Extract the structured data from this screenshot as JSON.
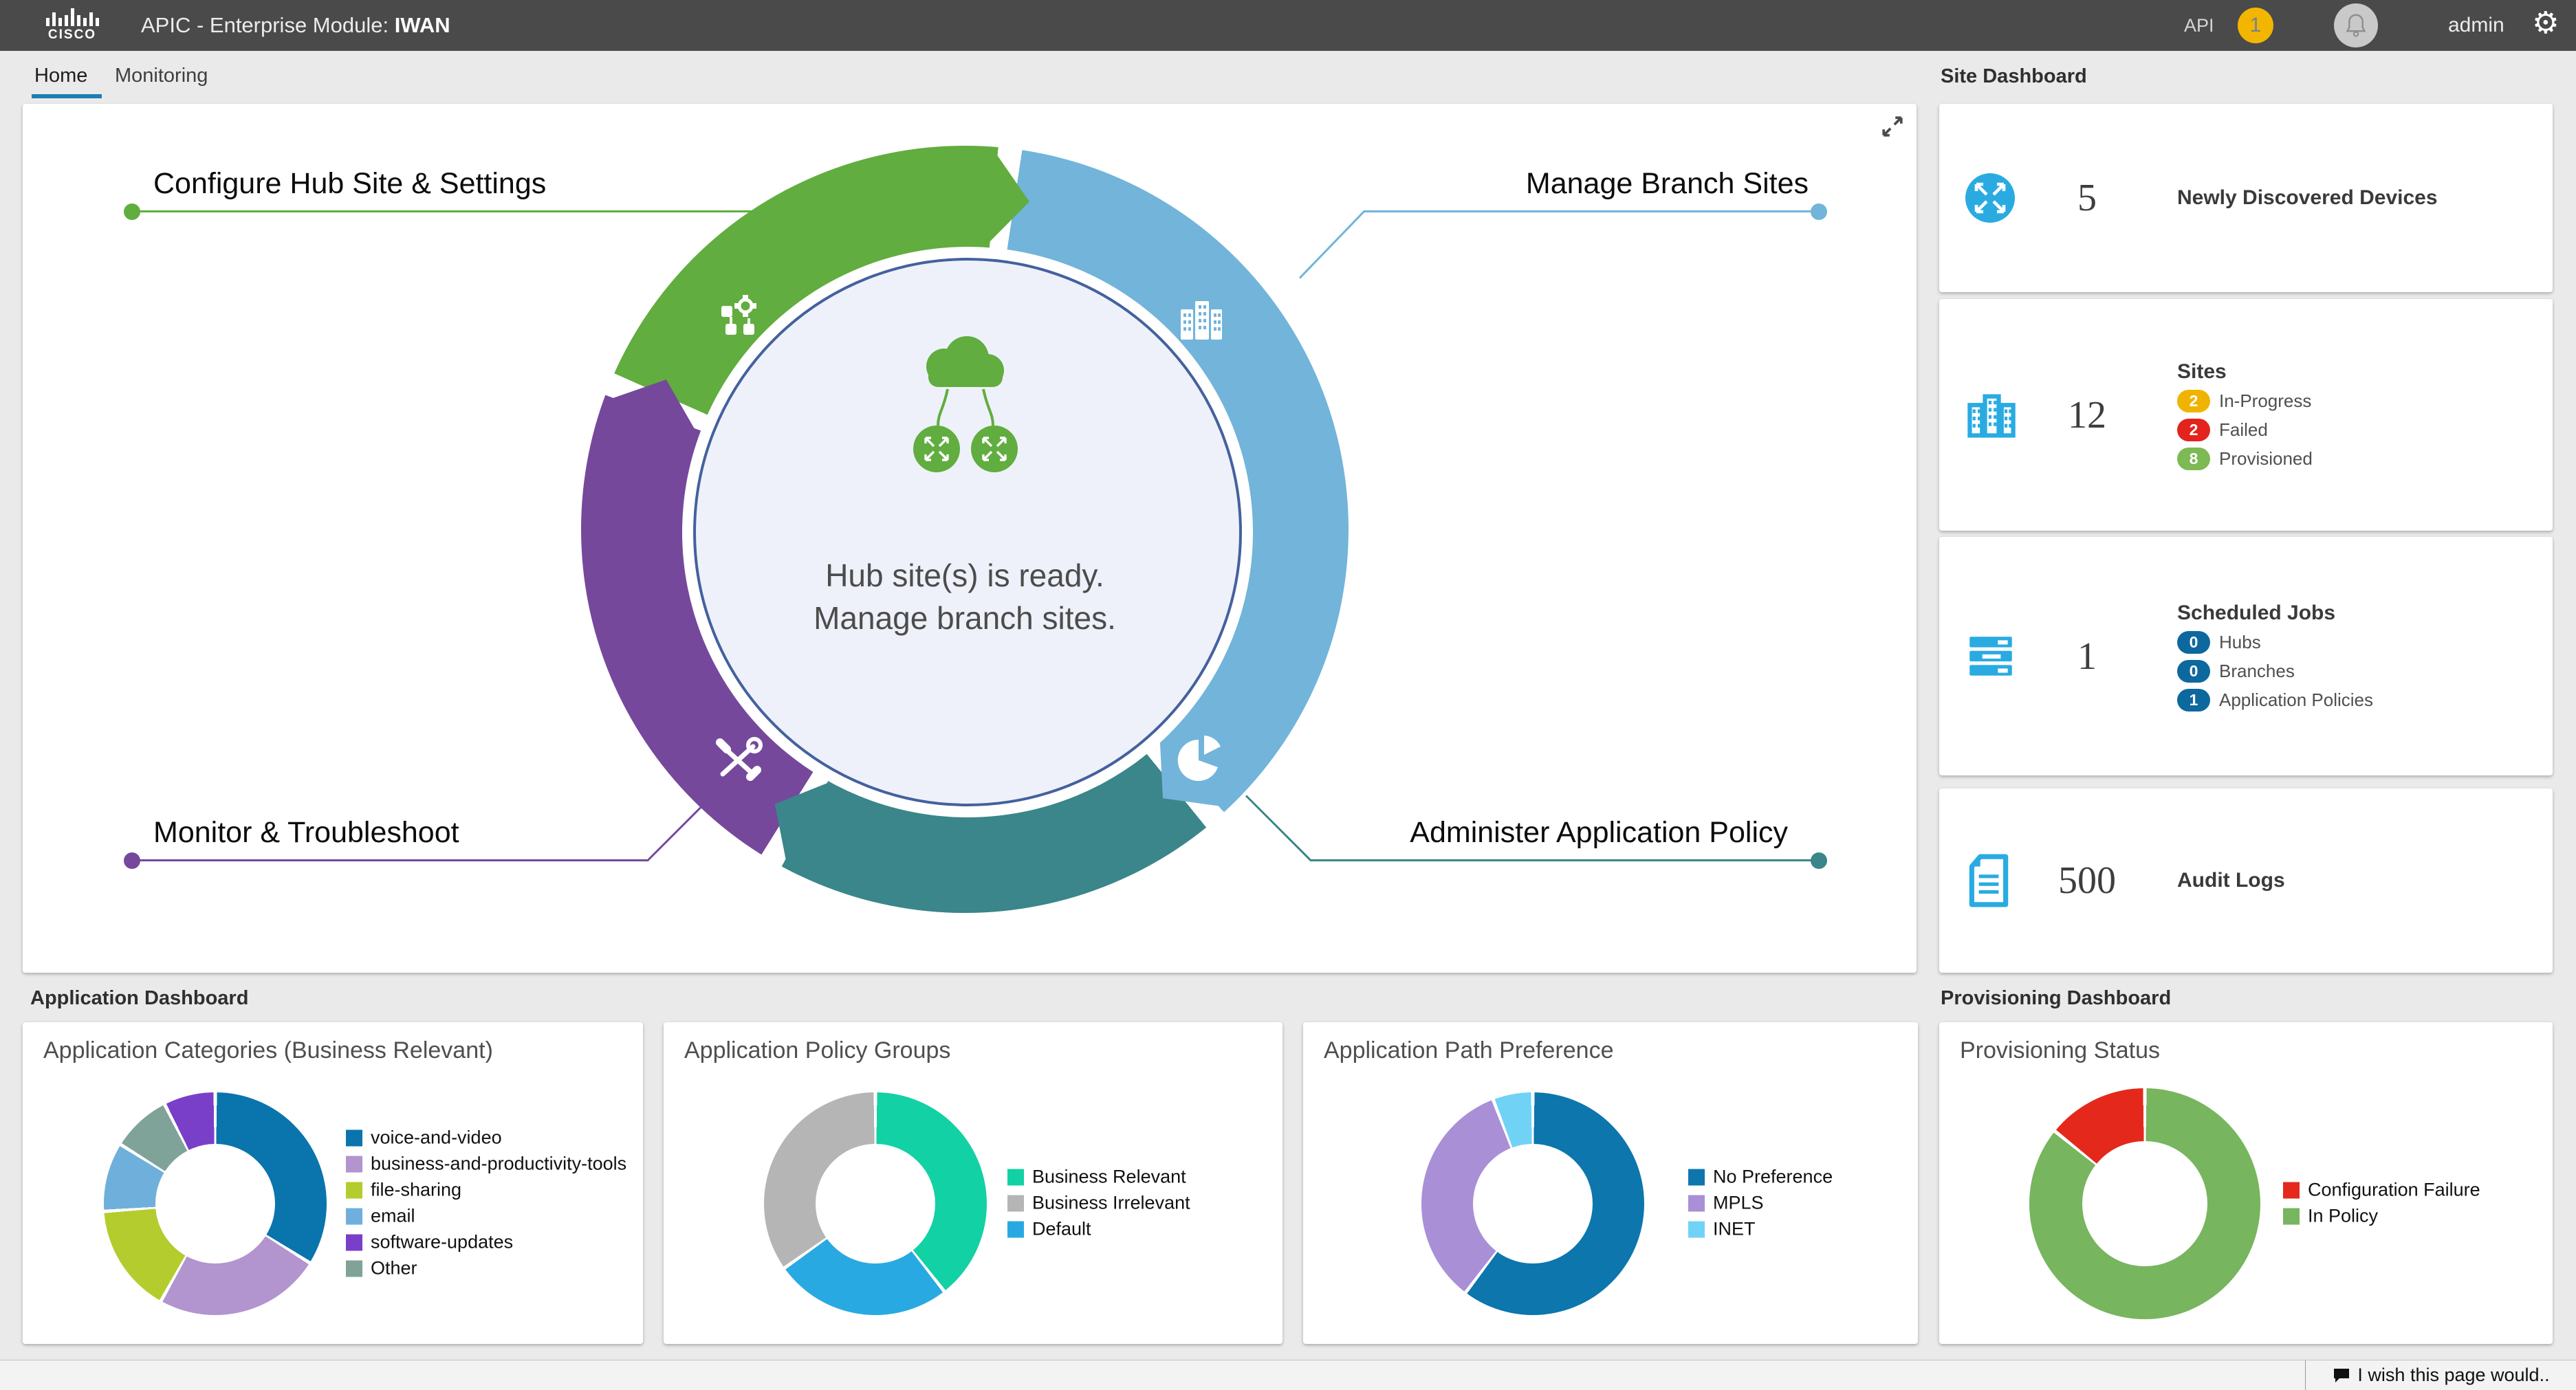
{
  "theme": {
    "page": "#eaeaea",
    "topbar": "#4a4a4a",
    "accent": "#1b7eb5",
    "icon_blue": "#29abe2",
    "green": "#61ad3f",
    "blue": "#72b4da",
    "teal": "#3a868a",
    "purple": "#75489c"
  },
  "topbar": {
    "brand": "CISCO",
    "title_prefix": "APIC - Enterprise Module:",
    "title_bold": "IWAN",
    "api": "API",
    "alert_count": "1",
    "user": "admin"
  },
  "tabs": [
    {
      "label": "Home",
      "active": true
    },
    {
      "label": "Monitoring",
      "active": false
    }
  ],
  "hub": {
    "labels": [
      {
        "text": "Configure Hub Site & Settings",
        "color": "#61ad3f"
      },
      {
        "text": "Manage Branch Sites",
        "color": "#72b4da"
      },
      {
        "text": "Monitor & Troubleshoot",
        "color": "#75489c"
      },
      {
        "text": "Administer Application Policy",
        "color": "#3a868a"
      }
    ],
    "center": [
      "Hub site(s) is ready.",
      "Manage branch sites."
    ],
    "ring_stops": [
      [
        "#61ad3f",
        0,
        5
      ],
      [
        "#ffffff",
        5,
        8.6
      ],
      [
        "#72b4da",
        8.6,
        137.5
      ],
      [
        "#ffffff",
        137.5,
        141
      ],
      [
        "#3a868a",
        141,
        208.5
      ],
      [
        "#ffffff",
        208.5,
        212
      ],
      [
        "#75489c",
        212,
        290.5
      ],
      [
        "#ffffff",
        290.5,
        294
      ],
      [
        "#61ad3f",
        294,
        360
      ]
    ],
    "chevrons": [
      {
        "angle": 5,
        "color": "#61ad3f"
      },
      {
        "angle": 137.5,
        "color": "#72b4da"
      },
      {
        "angle": 208.5,
        "color": "#3a868a"
      },
      {
        "angle": 290.5,
        "color": "#75489c"
      }
    ]
  },
  "site_dashboard": {
    "heading": "Site Dashboard",
    "cards": [
      {
        "icon": "router",
        "value": "5",
        "title": "Newly Discovered Devices",
        "badges": []
      },
      {
        "icon": "buildings",
        "value": "12",
        "title": "Sites",
        "badges": [
          {
            "count": "2",
            "color": "#f0b400",
            "label": "In-Progress"
          },
          {
            "count": "2",
            "color": "#e3241c",
            "label": "Failed"
          },
          {
            "count": "8",
            "color": "#7db954",
            "label": "Provisioned"
          }
        ]
      },
      {
        "icon": "servers",
        "value": "1",
        "title": "Scheduled Jobs",
        "badges": [
          {
            "count": "0",
            "color": "#0d689e",
            "label": "Hubs"
          },
          {
            "count": "0",
            "color": "#0d689e",
            "label": "Branches"
          },
          {
            "count": "1",
            "color": "#0d689e",
            "label": "Application Policies"
          }
        ]
      },
      {
        "icon": "document",
        "value": "500",
        "title": "Audit Logs",
        "badges": []
      }
    ]
  },
  "application_dashboard": {
    "heading": "Application Dashboard"
  },
  "provisioning_dashboard": {
    "heading": "Provisioning Dashboard"
  },
  "chart_data": [
    {
      "type": "donut",
      "title": "Application Categories (Business Relevant)",
      "segments": [
        {
          "label": "voice-and-video",
          "color": "#0a74ad",
          "pct": 33.9
        },
        {
          "label": "business-and-productivity-tools",
          "color": "#b294cf",
          "pct": 24.2
        },
        {
          "label": "file-sharing",
          "color": "#b4cc2e",
          "pct": 15.8
        },
        {
          "label": "email",
          "color": "#6fafdc",
          "pct": 10.0
        },
        {
          "label": "Other",
          "color": "#7fa398",
          "pct": 8.6
        },
        {
          "label": "software-updates",
          "color": "#7a3fc9",
          "pct": 7.5
        }
      ],
      "legend_order": [
        0,
        1,
        2,
        3,
        5,
        4
      ]
    },
    {
      "type": "donut",
      "title": "Application Policy Groups",
      "segments": [
        {
          "label": "Business Relevant",
          "color": "#12d1a4",
          "pct": 39.4
        },
        {
          "label": "Default",
          "color": "#29a9e1",
          "pct": 25.8
        },
        {
          "label": "Business Irrelevant",
          "color": "#b5b5b5",
          "pct": 34.8
        }
      ],
      "legend_order": [
        0,
        2,
        1
      ]
    },
    {
      "type": "donut",
      "title": "Application Path Preference",
      "segments": [
        {
          "label": "No Preference",
          "color": "#0c76ad",
          "pct": 60.3
        },
        {
          "label": "MPLS",
          "color": "#a98fd6",
          "pct": 33.9
        },
        {
          "label": "INET",
          "color": "#70d3f6",
          "pct": 5.8
        }
      ],
      "legend_order": [
        0,
        1,
        2
      ]
    },
    {
      "type": "donut",
      "title": "Provisioning Status",
      "segments": [
        {
          "label": "In Policy",
          "color": "#77b55e",
          "pct": 85.8
        },
        {
          "label": "Configuration Failure",
          "color": "#e5281c",
          "pct": 14.2
        }
      ],
      "legend_order": [
        1,
        0
      ]
    }
  ],
  "footer": {
    "feedback_label": "I wish this page would.."
  }
}
